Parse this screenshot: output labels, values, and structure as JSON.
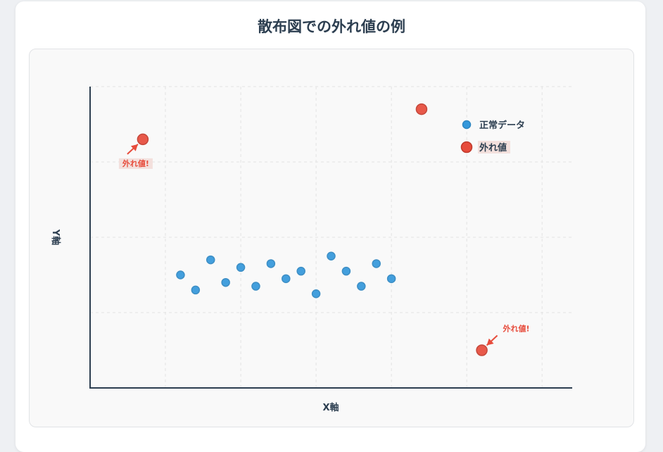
{
  "chart_data": {
    "type": "scatter",
    "title": "散布図での外れ値の例",
    "xlabel": "X軸",
    "ylabel": "Y軸",
    "xlim": [
      0,
      6.4
    ],
    "ylim": [
      0,
      4
    ],
    "grid": true,
    "legend_position": "top-right",
    "series": [
      {
        "name": "正常データ",
        "color": "#3498db",
        "x": [
          1.2,
          1.4,
          1.6,
          1.8,
          2.0,
          2.2,
          2.4,
          2.6,
          2.8,
          3.0,
          3.2,
          3.4,
          3.6,
          3.8,
          4.0
        ],
        "y": [
          1.5,
          1.3,
          1.7,
          1.4,
          1.6,
          1.35,
          1.65,
          1.45,
          1.55,
          1.25,
          1.75,
          1.55,
          1.35,
          1.65,
          1.45
        ]
      },
      {
        "name": "外れ値",
        "color": "#e74c3c",
        "x": [
          0.7,
          4.4,
          5.2
        ],
        "y": [
          3.3,
          3.7,
          0.5
        ]
      }
    ],
    "annotations": [
      {
        "text": "外れ値!",
        "point_x": 0.7,
        "point_y": 3.3
      },
      {
        "text": "外れ値!",
        "point_x": 5.2,
        "point_y": 0.5
      }
    ]
  }
}
